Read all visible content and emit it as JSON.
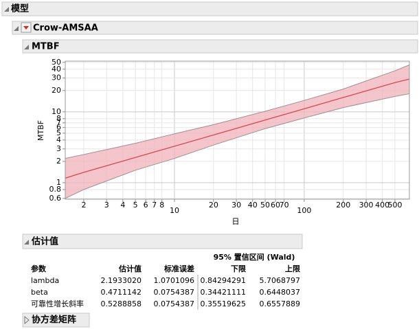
{
  "panels": {
    "model": "模型",
    "crow": "Crow-AMSAA",
    "mtbf": "MTBF",
    "covariance": "协方差矩阵"
  },
  "chart_data": {
    "type": "line",
    "x_label": "日",
    "y_label": "MTBF",
    "log_x": true,
    "log_y": true,
    "grid": true,
    "xlim": [
      1.44,
      646
    ],
    "ylim": [
      0.585,
      52
    ],
    "xticks": [
      2,
      3,
      4,
      5,
      6,
      7,
      8,
      10,
      20,
      30,
      40,
      50,
      60,
      70,
      100,
      200,
      300,
      400,
      500
    ],
    "yticks": [
      0.6,
      0.8,
      1,
      2,
      3,
      4,
      5,
      6,
      7,
      8,
      10,
      20,
      30,
      40,
      50
    ],
    "x": [
      1.44,
      2,
      5,
      10,
      20,
      50,
      100,
      200,
      500,
      646
    ],
    "series": [
      {
        "color": "#d9464f",
        "values": [
          1.16,
          1.4,
          2.27,
          3.27,
          4.72,
          7.66,
          11.06,
          15.95,
          25.9,
          29.0
        ],
        "band_color": "#f0b3bb",
        "lower": [
          0.6,
          0.8,
          1.5,
          2.2,
          3.4,
          5.8,
          8.2,
          11.5,
          16.5,
          18
        ],
        "upper": [
          2.2,
          2.5,
          3.6,
          4.9,
          6.6,
          10.2,
          14.5,
          21,
          38,
          46
        ]
      }
    ]
  },
  "estimates": {
    "title": "估计值",
    "group_header": "95% 置信区间 (Wald)",
    "columns": [
      "参数",
      "估计值",
      "标准误差",
      "下限",
      "上限"
    ],
    "rows": [
      [
        "lambda",
        "2.1933020",
        "1.0701096",
        "0.84294291",
        "5.7068797"
      ],
      [
        "beta",
        "0.4711142",
        "0.0754387",
        "0.34421111",
        "0.6448037"
      ],
      [
        "可靠性增长斜率",
        "0.5288858",
        "0.0754387",
        "0.35519625",
        "0.6557889"
      ]
    ]
  }
}
